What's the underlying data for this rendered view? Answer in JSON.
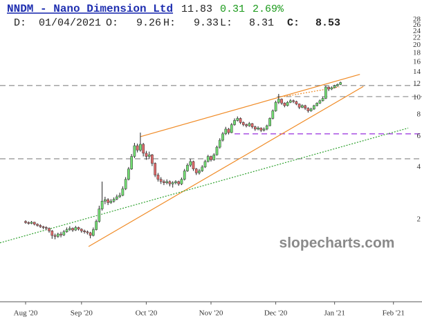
{
  "header": {
    "title": "NNDM - Nano Dimension Ltd",
    "last": "11.83",
    "change": "0.31",
    "change_pct": "2.69%",
    "date_label": "D:",
    "date": "01/04/2021",
    "open_label": "O:",
    "open": "9.26",
    "high_label": "H:",
    "high": "9.33",
    "low_label": "L:",
    "low": "8.31",
    "close_label": "C:",
    "close": "8.53"
  },
  "chart_data": {
    "type": "candlestick",
    "watermark": "slopecharts.com",
    "log_scale": true,
    "up_color": "#72dc72",
    "down_color": "#e06a6a",
    "ylim": [
      0.675,
      28.9
    ],
    "yticks": [
      2,
      4,
      6,
      8,
      10,
      12,
      14,
      16,
      18,
      20,
      22,
      24,
      26,
      28
    ],
    "xlim": [
      -8.7,
      130
    ],
    "xticks": [
      {
        "value": 0,
        "label": "Aug '20"
      },
      {
        "value": 19,
        "label": "Sep '20"
      },
      {
        "value": 41,
        "label": "Oct '20"
      },
      {
        "value": 63,
        "label": "Nov '20"
      },
      {
        "value": 85,
        "label": "Dec '20"
      },
      {
        "value": 105,
        "label": "Jan '21"
      },
      {
        "value": 125,
        "label": "Feb '21"
      }
    ],
    "open": [
      1.95,
      1.92,
      1.9,
      1.93,
      1.88,
      1.85,
      1.82,
      1.8,
      1.78,
      1.72,
      1.62,
      1.6,
      1.65,
      1.63,
      1.7,
      1.75,
      1.78,
      1.74,
      1.8,
      1.76,
      1.72,
      1.7,
      1.68,
      1.62,
      1.75,
      1.95,
      2.3,
      2.55,
      2.6,
      2.5,
      2.55,
      2.62,
      2.7,
      2.75,
      3.0,
      3.4,
      3.9,
      4.6,
      5.3,
      5.0,
      5.4,
      4.8,
      4.6,
      4.7,
      4.2,
      3.6,
      3.4,
      3.3,
      3.25,
      3.3,
      3.2,
      3.25,
      3.3,
      3.2,
      3.4,
      3.8,
      4.1,
      4.3,
      3.9,
      3.7,
      3.8,
      4.0,
      4.3,
      4.6,
      4.4,
      4.7,
      5.2,
      5.7,
      6.2,
      6.6,
      6.3,
      7.0,
      7.4,
      7.6,
      7.2,
      7.0,
      6.9,
      7.1,
      6.8,
      6.6,
      6.7,
      6.5,
      6.6,
      6.9,
      7.6,
      8.4,
      9.4,
      9.8,
      9.3,
      9.0,
      9.4,
      9.6,
      9.5,
      9.2,
      8.8,
      9.0,
      8.7,
      8.4,
      8.6,
      9.0,
      9.3,
      9.6,
      9.9,
      11.5,
      11.2,
      11.4,
      11.7,
      11.9
    ],
    "high": [
      1.98,
      1.95,
      1.96,
      1.94,
      1.9,
      1.88,
      1.84,
      1.83,
      1.8,
      1.74,
      1.66,
      1.68,
      1.7,
      1.74,
      1.8,
      1.83,
      1.8,
      1.84,
      1.82,
      1.78,
      1.75,
      1.73,
      1.7,
      1.8,
      2.0,
      2.4,
      3.3,
      2.7,
      2.65,
      2.62,
      2.68,
      2.78,
      2.85,
      3.1,
      3.5,
      4.0,
      4.75,
      5.5,
      5.45,
      6.3,
      5.5,
      4.95,
      4.9,
      4.75,
      4.25,
      3.7,
      3.5,
      3.38,
      3.4,
      3.35,
      3.32,
      3.36,
      3.34,
      3.48,
      3.9,
      4.2,
      4.45,
      4.35,
      3.95,
      3.9,
      4.1,
      4.4,
      4.7,
      4.65,
      4.8,
      5.3,
      5.85,
      6.35,
      6.8,
      6.7,
      7.15,
      7.6,
      7.8,
      7.7,
      7.3,
      7.1,
      7.25,
      7.15,
      6.9,
      6.85,
      6.75,
      6.75,
      7.0,
      7.7,
      8.55,
      9.6,
      10.5,
      9.9,
      9.4,
      9.55,
      9.8,
      9.75,
      9.6,
      9.25,
      9.15,
      9.1,
      8.8,
      8.75,
      9.1,
      9.4,
      9.75,
      10.1,
      11.7,
      11.6,
      11.6,
      11.85,
      12.05,
      12.35
    ],
    "low": [
      1.89,
      1.87,
      1.88,
      1.85,
      1.82,
      1.79,
      1.76,
      1.74,
      1.68,
      1.55,
      1.54,
      1.57,
      1.58,
      1.61,
      1.68,
      1.72,
      1.7,
      1.72,
      1.73,
      1.68,
      1.66,
      1.64,
      1.56,
      1.6,
      1.73,
      1.92,
      2.25,
      2.45,
      2.42,
      2.46,
      2.5,
      2.58,
      2.66,
      2.72,
      2.95,
      3.35,
      3.85,
      4.5,
      4.85,
      4.9,
      4.6,
      4.4,
      4.45,
      4.05,
      3.5,
      3.3,
      3.2,
      3.15,
      3.18,
      3.1,
      3.05,
      3.18,
      3.12,
      3.15,
      3.35,
      3.75,
      4.0,
      3.8,
      3.6,
      3.62,
      3.75,
      3.95,
      4.25,
      4.3,
      4.35,
      4.65,
      5.1,
      5.6,
      6.1,
      6.15,
      6.25,
      6.9,
      7.3,
      7.05,
      6.85,
      6.75,
      6.8,
      6.65,
      6.45,
      6.5,
      6.35,
      6.4,
      6.5,
      6.85,
      7.5,
      8.3,
      9.2,
      9.1,
      8.8,
      8.9,
      9.3,
      9.3,
      9.05,
      8.6,
      8.7,
      8.5,
      8.2,
      8.3,
      8.5,
      8.9,
      9.2,
      9.5,
      9.8,
      10.9,
      11.05,
      11.3,
      11.55,
      11.8
    ],
    "close": [
      1.92,
      1.9,
      1.93,
      1.88,
      1.85,
      1.82,
      1.8,
      1.78,
      1.72,
      1.62,
      1.6,
      1.65,
      1.63,
      1.7,
      1.75,
      1.78,
      1.74,
      1.8,
      1.76,
      1.72,
      1.7,
      1.68,
      1.62,
      1.75,
      1.95,
      2.3,
      2.55,
      2.6,
      2.5,
      2.55,
      2.62,
      2.7,
      2.75,
      3.0,
      3.4,
      3.9,
      4.6,
      5.3,
      5.0,
      5.4,
      4.8,
      4.6,
      4.7,
      4.2,
      3.6,
      3.4,
      3.3,
      3.25,
      3.3,
      3.2,
      3.25,
      3.3,
      3.2,
      3.4,
      3.8,
      4.1,
      4.3,
      3.9,
      3.7,
      3.8,
      4.0,
      4.3,
      4.6,
      4.4,
      4.7,
      5.2,
      5.7,
      6.2,
      6.6,
      6.3,
      7.0,
      7.4,
      7.6,
      7.2,
      7.0,
      6.9,
      7.1,
      6.8,
      6.6,
      6.7,
      6.5,
      6.6,
      6.9,
      7.6,
      8.4,
      9.4,
      9.8,
      9.3,
      9.0,
      9.4,
      9.6,
      9.5,
      9.2,
      8.8,
      9.0,
      8.7,
      8.4,
      8.6,
      9.0,
      9.3,
      9.6,
      9.9,
      11.5,
      11.2,
      11.4,
      11.7,
      11.9,
      12.2
    ],
    "hlines": [
      {
        "value": 11.74,
        "x_start": -8.7,
        "color": "#999999"
      },
      {
        "value": 10.14,
        "x_start": 85.4,
        "color": "#999999"
      },
      {
        "value": 4.46,
        "x_start": -8.7,
        "color": "#999999"
      },
      {
        "value": 6.2,
        "x_start": 71,
        "color": "#a040e0"
      }
    ],
    "lines": [
      {
        "x": [
          21.4,
          114.8
        ],
        "y": [
          1.4,
          11.6
        ],
        "color": "#f08a24",
        "dashed": false
      },
      {
        "x": [
          39.1,
          113.6
        ],
        "y": [
          5.98,
          13.6
        ],
        "color": "#f08a24",
        "dashed": false
      },
      {
        "x": [
          -8.7,
          130
        ],
        "y": [
          1.47,
          6.69
        ],
        "color": "#2ca02c",
        "dashed": true
      },
      {
        "x": [
          87.8,
          106.6
        ],
        "y": [
          10.14,
          11.52
        ],
        "color": "#f08a24",
        "dashed": true
      }
    ]
  }
}
